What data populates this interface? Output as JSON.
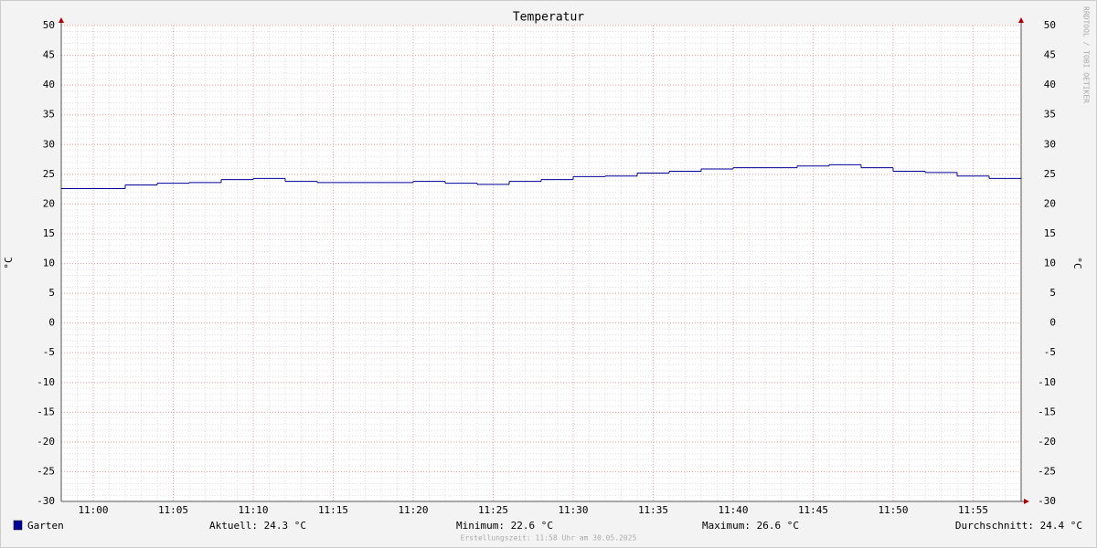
{
  "chart_data": {
    "type": "step-line",
    "title": "Temperatur",
    "ylabel": "°C",
    "y2label": "°C",
    "x": [
      "10:58",
      "11:02",
      "11:04",
      "11:06",
      "11:08",
      "11:10",
      "11:12",
      "11:14",
      "11:20",
      "11:22",
      "11:24",
      "11:26",
      "11:28",
      "11:30",
      "11:32",
      "11:34",
      "11:36",
      "11:38",
      "11:40",
      "11:44",
      "11:46",
      "11:48",
      "11:50",
      "11:52",
      "11:54",
      "11:56",
      "11:58"
    ],
    "xlim": [
      "10:58",
      "11:58"
    ],
    "xticks": [
      "11:00",
      "11:05",
      "11:10",
      "11:15",
      "11:20",
      "11:25",
      "11:30",
      "11:35",
      "11:40",
      "11:45",
      "11:50",
      "11:55"
    ],
    "ylim": [
      -30,
      50
    ],
    "yticks": [
      -30,
      -25,
      -20,
      -15,
      -10,
      -5,
      0,
      5,
      10,
      15,
      20,
      25,
      30,
      35,
      40,
      45,
      50
    ],
    "grid": true,
    "minor_grid": true,
    "series": [
      {
        "name": "Garten",
        "color": "#000099",
        "values": [
          22.6,
          23.2,
          23.5,
          23.6,
          24.1,
          24.3,
          23.8,
          23.6,
          23.8,
          23.5,
          23.3,
          23.8,
          24.1,
          24.6,
          24.7,
          25.2,
          25.5,
          25.9,
          26.1,
          26.4,
          26.6,
          26.1,
          25.5,
          25.3,
          24.7,
          24.3,
          24.3
        ]
      }
    ],
    "stats": [
      "Aktuell: 24.3 °C",
      "Minimum: 22.6 °C",
      "Maximum: 26.6 °C",
      "Durchschnitt: 24.4 °C"
    ],
    "footer": "Erstellungszeit: 11:58 Uhr am 30.05.2025",
    "watermark": "RRDTOOL / TOBI OETIKER"
  }
}
